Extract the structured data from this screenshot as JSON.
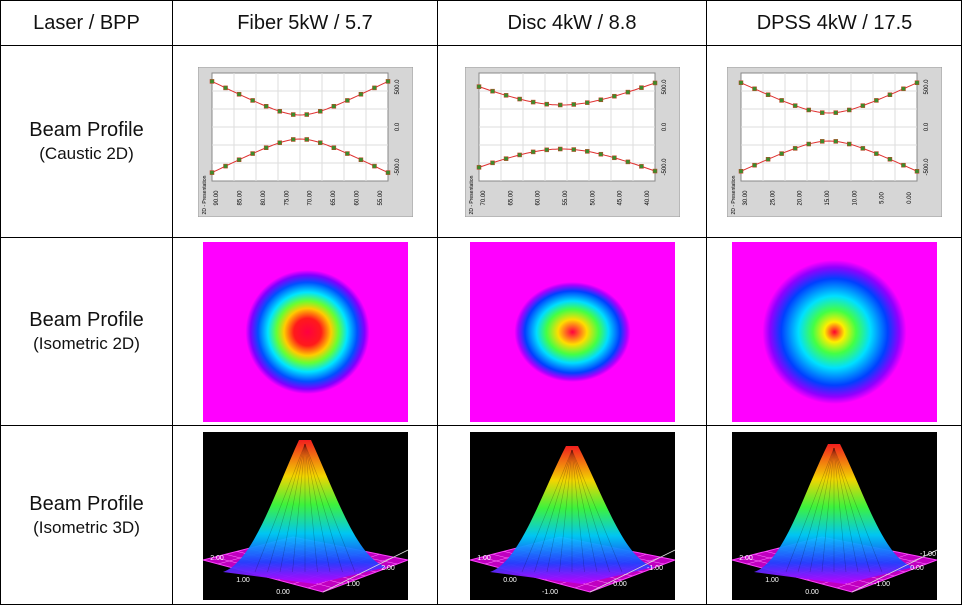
{
  "table": {
    "header": [
      "Laser / BPP",
      "Fiber 5kW / 5.7",
      "Disc 4kW / 8.8",
      "DPSS 4kW / 17.5"
    ],
    "rows": [
      {
        "label": [
          "Beam Profile",
          "(Caustic 2D)"
        ]
      },
      {
        "label": [
          "Beam Profile",
          "(Isometric 2D)"
        ]
      },
      {
        "label": [
          "Beam Profile",
          "(Isometric 3D)"
        ]
      }
    ],
    "caustic": [
      {
        "axis_label": "2D - Presentation",
        "y_ticks": [
          "500.0",
          "0.0",
          "-500.0"
        ],
        "x_ticks": [
          "90.00",
          "85.00",
          "80.00",
          "75.00",
          "70.00",
          "65.00",
          "60.00",
          "55.00"
        ]
      },
      {
        "axis_label": "2D - Presentation",
        "y_ticks": [
          "500.0",
          "0.0",
          "-500.0"
        ],
        "x_ticks": [
          "70.00",
          "65.00",
          "60.00",
          "55.00",
          "50.00",
          "45.00",
          "40.00"
        ]
      },
      {
        "axis_label": "2D - Presentation",
        "y_ticks": [
          "500.0",
          "0.0",
          "-500.0"
        ],
        "x_ticks": [
          "30.00",
          "25.00",
          "20.00",
          "15.00",
          "10.00",
          "5.00",
          "0.00"
        ]
      }
    ],
    "iso3d": [
      {
        "axis_labels": [
          "2.00",
          "1.00",
          "0.00",
          "1.00",
          "2.00"
        ]
      },
      {
        "axis_labels": [
          "1.00",
          "0.00",
          "-1.00",
          "0.00",
          "-1.00"
        ]
      },
      {
        "axis_labels": [
          "2.00",
          "1.00",
          "0.00",
          "-1.00",
          "0.00",
          "-1.00"
        ]
      }
    ]
  }
}
